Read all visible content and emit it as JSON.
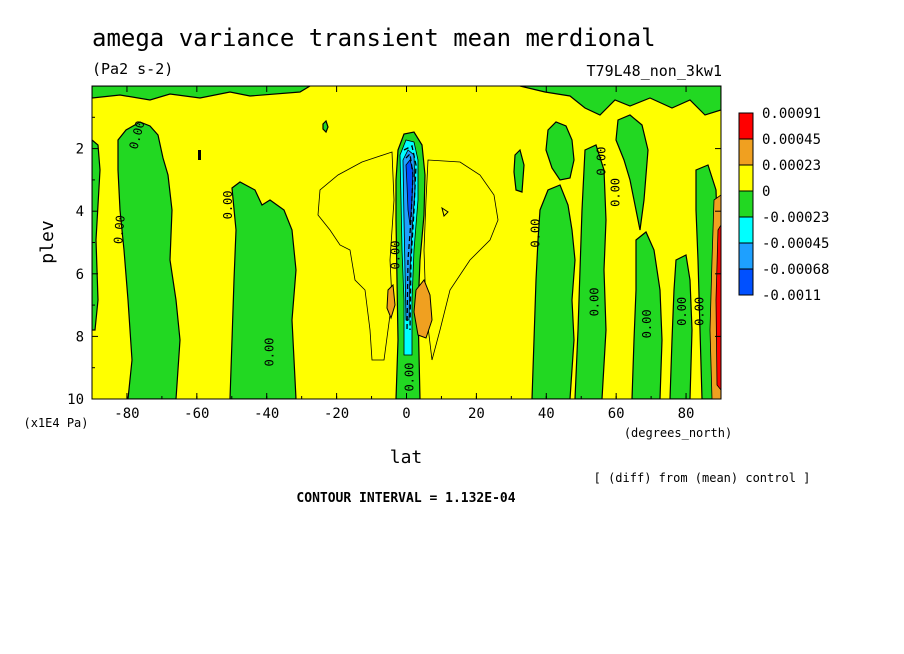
{
  "chart_data": {
    "type": "heatmap",
    "title": "amega variance transient mean merdional",
    "units": "(Pa2 s-2)",
    "experiment": "T79L48_non_3kw1",
    "xlabel": "lat",
    "x_units": "(degrees_north)",
    "ylabel": "plev",
    "y_units": "(x1E4 Pa)",
    "xlim": [
      -90,
      90
    ],
    "ylim": [
      10,
      0
    ],
    "x_ticks": [
      "-80",
      "-60",
      "-40",
      "-20",
      "0",
      "20",
      "40",
      "60",
      "80"
    ],
    "x_tick_values": [
      -80,
      -60,
      -40,
      -20,
      0,
      20,
      40,
      60,
      80
    ],
    "y_ticks": [
      "2",
      "4",
      "6",
      "8",
      "10"
    ],
    "y_tick_values": [
      2,
      4,
      6,
      8,
      10
    ],
    "colorbar": [
      {
        "label": "0.00091",
        "color": "#ff0000"
      },
      {
        "label": "0.00045",
        "color": "#f0a020"
      },
      {
        "label": "0.00023",
        "color": "#ffff00"
      },
      {
        "label": "0",
        "color": "#22d822"
      },
      {
        "label": "-0.00023",
        "color": "#00ffff"
      },
      {
        "label": "-0.00045",
        "color": "#1ea0ff"
      },
      {
        "label": "-0.00068",
        "color": "#0050ff"
      },
      {
        "label": "-0.0011",
        "color": "#0050ff"
      }
    ],
    "background_color": "#ffff00",
    "contour_labels": [
      {
        "text": "0.00",
        "lat": -76,
        "plev": 1.6,
        "rot": -75
      },
      {
        "text": "0.00",
        "lat": -81,
        "plev": 4.6,
        "rot": -85
      },
      {
        "text": "0.00",
        "lat": -50,
        "plev": 3.8,
        "rot": -90
      },
      {
        "text": "0.00",
        "lat": -38,
        "plev": 8.5,
        "rot": -90
      },
      {
        "text": "0.00",
        "lat": -2,
        "plev": 5.4,
        "rot": -90
      },
      {
        "text": "0.00",
        "lat": 2,
        "plev": 9.3,
        "rot": -90
      },
      {
        "text": "0.00",
        "lat": 38,
        "plev": 4.7,
        "rot": -90
      },
      {
        "text": "0.00",
        "lat": 57,
        "plev": 2.4,
        "rot": -90
      },
      {
        "text": "0.00",
        "lat": 61,
        "plev": 3.4,
        "rot": -90
      },
      {
        "text": "0.00",
        "lat": 55,
        "plev": 6.9,
        "rot": -90
      },
      {
        "text": "0.00",
        "lat": 70,
        "plev": 7.6,
        "rot": -90
      },
      {
        "text": "0.00",
        "lat": 80,
        "plev": 7.2,
        "rot": -90
      },
      {
        "text": "0.00",
        "lat": 85,
        "plev": 7.2,
        "rot": -90
      }
    ]
  },
  "footer": {
    "diff_note": "[ (diff) from (mean) control ]",
    "contour_interval": "CONTOUR INTERVAL = 1.132E-04"
  }
}
